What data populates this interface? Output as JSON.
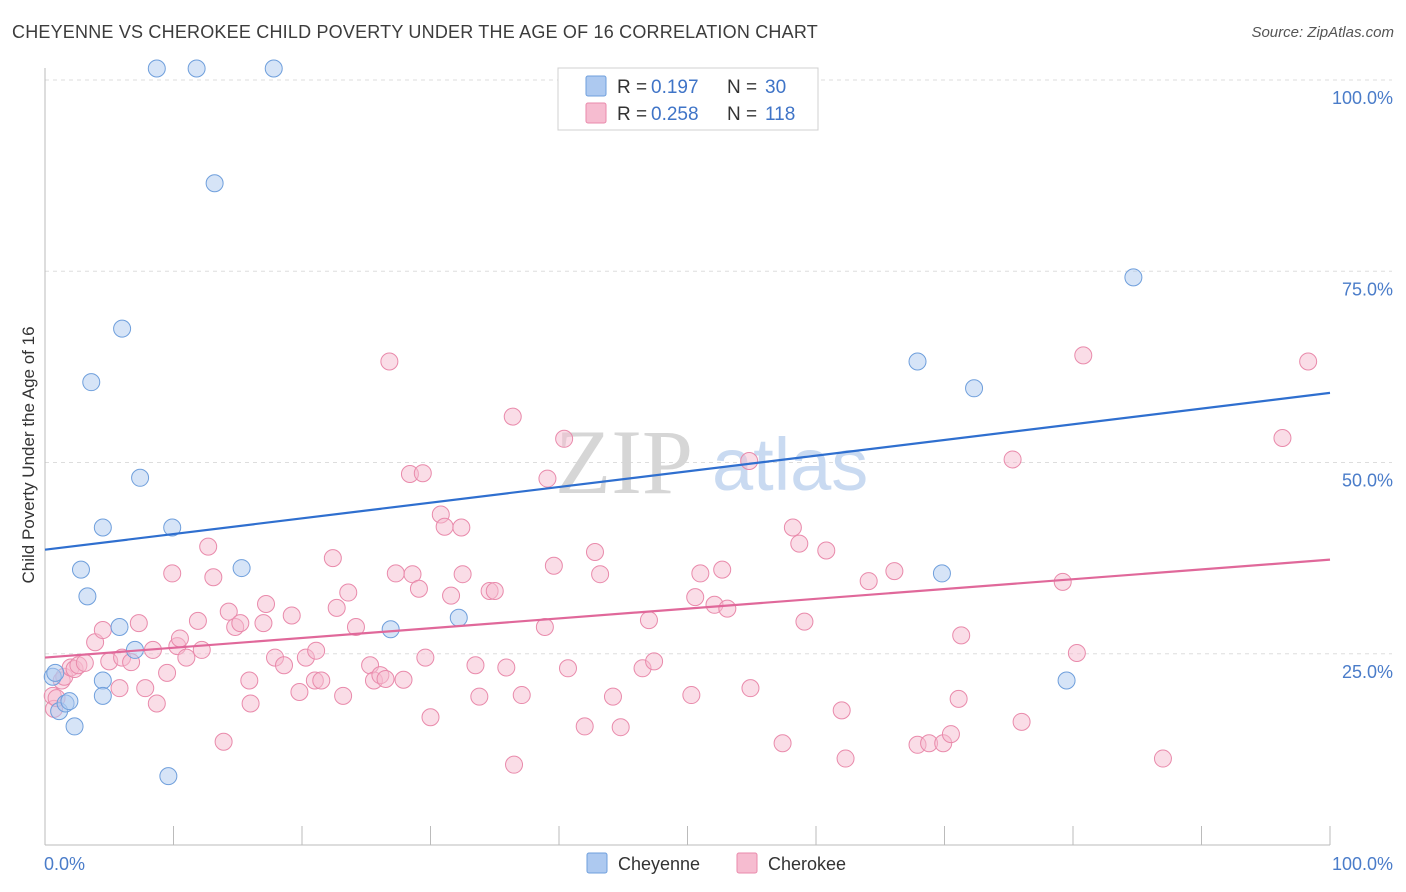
{
  "title": "CHEYENNE VS CHEROKEE CHILD POVERTY UNDER THE AGE OF 16 CORRELATION CHART",
  "source": "Source: ZipAtlas.com",
  "watermark": {
    "zip": "ZIP",
    "atlas": "atlas"
  },
  "legend": {
    "rows": [
      {
        "r_label": "R =",
        "r_value": "0.197",
        "n_label": "N =",
        "n_value": "30"
      },
      {
        "r_label": "R =",
        "r_value": "0.258",
        "n_label": "N =",
        "n_value": "118"
      }
    ]
  },
  "bottom_legend": {
    "cheyenne": "Cheyenne",
    "cherokee": "Cherokee"
  },
  "colors": {
    "cheyenne_fill": "#adc9f0",
    "cheyenne_stroke": "#6f9fdc",
    "cheyenne_line": "#2f6fcf",
    "cherokee_fill": "#f6bcd0",
    "cherokee_stroke": "#e98aab",
    "cherokee_line": "#e0689a",
    "tick_text": "#4a7cc9",
    "grid": "#dddddd"
  },
  "chart_data": {
    "type": "scatter",
    "title": "CHEYENNE VS CHEROKEE CHILD POVERTY UNDER THE AGE OF 16 CORRELATION CHART",
    "xlabel": "",
    "ylabel": "Child Poverty Under the Age of 16",
    "xlim": [
      0,
      100
    ],
    "ylim": [
      0,
      100
    ],
    "x_tick_labels": [
      "0.0%",
      "100.0%"
    ],
    "y_ticks": [
      25,
      50,
      75,
      100
    ],
    "y_tick_labels": [
      "25.0%",
      "50.0%",
      "75.0%",
      "100.0%"
    ],
    "grid": true,
    "legend_position": "top-center",
    "series": [
      {
        "name": "Cheyenne",
        "R": 0.197,
        "N": 30,
        "trend": [
          [
            0,
            38.6
          ],
          [
            100,
            59.1
          ]
        ],
        "points": [
          [
            0.6,
            22.0
          ],
          [
            0.8,
            22.5
          ],
          [
            1.1,
            17.5
          ],
          [
            1.6,
            18.5
          ],
          [
            1.9,
            18.8
          ],
          [
            2.3,
            15.5
          ],
          [
            2.8,
            36.0
          ],
          [
            3.3,
            32.5
          ],
          [
            3.6,
            60.5
          ],
          [
            4.5,
            21.5
          ],
          [
            4.5,
            19.5
          ],
          [
            4.5,
            41.5
          ],
          [
            5.8,
            28.5
          ],
          [
            6.0,
            67.5
          ],
          [
            7.0,
            25.5
          ],
          [
            7.4,
            48.0
          ],
          [
            8.7,
            101.5
          ],
          [
            9.6,
            9.0
          ],
          [
            9.9,
            41.5
          ],
          [
            11.8,
            101.5
          ],
          [
            13.2,
            86.5
          ],
          [
            15.3,
            36.2
          ],
          [
            17.8,
            101.5
          ],
          [
            26.9,
            28.2
          ],
          [
            32.2,
            29.7
          ],
          [
            67.9,
            63.2
          ],
          [
            69.8,
            35.5
          ],
          [
            72.3,
            59.7
          ],
          [
            79.5,
            21.5
          ],
          [
            84.7,
            74.2
          ]
        ]
      },
      {
        "name": "Cherokee",
        "R": 0.258,
        "N": 118,
        "trend": [
          [
            0,
            24.5
          ],
          [
            100,
            37.3
          ]
        ],
        "points": [
          [
            0.6,
            19.5
          ],
          [
            0.7,
            17.8
          ],
          [
            0.9,
            19.2
          ],
          [
            1.3,
            21.5
          ],
          [
            1.5,
            22.0
          ],
          [
            2.0,
            23.2
          ],
          [
            2.3,
            23.0
          ],
          [
            2.6,
            23.5
          ],
          [
            3.1,
            23.8
          ],
          [
            3.9,
            26.5
          ],
          [
            4.5,
            28.1
          ],
          [
            5.0,
            24.0
          ],
          [
            5.8,
            20.5
          ],
          [
            6.0,
            24.5
          ],
          [
            6.7,
            23.9
          ],
          [
            7.3,
            29.0
          ],
          [
            7.8,
            20.5
          ],
          [
            8.4,
            25.5
          ],
          [
            8.7,
            18.5
          ],
          [
            9.5,
            22.5
          ],
          [
            9.9,
            35.5
          ],
          [
            10.3,
            26.0
          ],
          [
            10.5,
            27.0
          ],
          [
            11.0,
            24.5
          ],
          [
            11.9,
            29.3
          ],
          [
            12.2,
            25.5
          ],
          [
            12.7,
            39.0
          ],
          [
            13.1,
            35.0
          ],
          [
            13.9,
            13.5
          ],
          [
            14.3,
            30.5
          ],
          [
            14.8,
            28.5
          ],
          [
            15.2,
            29.0
          ],
          [
            15.9,
            21.5
          ],
          [
            16.0,
            18.5
          ],
          [
            17.0,
            29.0
          ],
          [
            17.2,
            31.5
          ],
          [
            17.9,
            24.5
          ],
          [
            18.6,
            23.5
          ],
          [
            19.2,
            30.0
          ],
          [
            19.8,
            20.0
          ],
          [
            20.3,
            24.5
          ],
          [
            21.0,
            21.5
          ],
          [
            21.1,
            25.4
          ],
          [
            21.5,
            21.5
          ],
          [
            22.4,
            37.5
          ],
          [
            22.7,
            31.0
          ],
          [
            23.2,
            19.5
          ],
          [
            23.6,
            33.0
          ],
          [
            24.2,
            28.5
          ],
          [
            25.3,
            23.5
          ],
          [
            25.6,
            21.5
          ],
          [
            26.1,
            22.2
          ],
          [
            26.5,
            21.7
          ],
          [
            26.8,
            63.2
          ],
          [
            27.3,
            35.5
          ],
          [
            27.9,
            21.6
          ],
          [
            28.4,
            48.5
          ],
          [
            28.6,
            35.4
          ],
          [
            29.1,
            33.5
          ],
          [
            29.4,
            48.6
          ],
          [
            29.6,
            24.5
          ],
          [
            30.0,
            16.7
          ],
          [
            30.8,
            43.2
          ],
          [
            31.1,
            41.6
          ],
          [
            31.6,
            32.6
          ],
          [
            32.4,
            41.5
          ],
          [
            32.5,
            35.4
          ],
          [
            33.5,
            23.5
          ],
          [
            33.8,
            19.4
          ],
          [
            34.6,
            33.2
          ],
          [
            35.0,
            33.2
          ],
          [
            35.9,
            23.2
          ],
          [
            36.4,
            56.0
          ],
          [
            36.5,
            10.5
          ],
          [
            37.1,
            19.6
          ],
          [
            38.9,
            28.5
          ],
          [
            39.1,
            47.9
          ],
          [
            39.6,
            36.5
          ],
          [
            40.4,
            53.1
          ],
          [
            40.7,
            23.1
          ],
          [
            42.0,
            15.5
          ],
          [
            42.8,
            38.3
          ],
          [
            43.2,
            35.4
          ],
          [
            44.2,
            19.4
          ],
          [
            44.8,
            15.4
          ],
          [
            46.5,
            23.1
          ],
          [
            47.0,
            29.4
          ],
          [
            47.4,
            24.0
          ],
          [
            50.3,
            19.6
          ],
          [
            50.6,
            32.4
          ],
          [
            51.0,
            35.5
          ],
          [
            52.1,
            31.4
          ],
          [
            52.7,
            36.0
          ],
          [
            53.1,
            30.9
          ],
          [
            54.8,
            50.2
          ],
          [
            54.9,
            20.5
          ],
          [
            57.4,
            13.3
          ],
          [
            58.2,
            41.5
          ],
          [
            58.7,
            39.4
          ],
          [
            59.1,
            29.2
          ],
          [
            60.8,
            38.5
          ],
          [
            62.0,
            17.6
          ],
          [
            62.3,
            11.3
          ],
          [
            64.1,
            34.5
          ],
          [
            66.1,
            35.8
          ],
          [
            67.9,
            13.1
          ],
          [
            68.8,
            13.3
          ],
          [
            69.9,
            13.3
          ],
          [
            70.5,
            14.5
          ],
          [
            71.1,
            19.1
          ],
          [
            71.3,
            27.4
          ],
          [
            75.3,
            50.4
          ],
          [
            76.0,
            16.1
          ],
          [
            79.2,
            34.4
          ],
          [
            80.3,
            25.1
          ],
          [
            80.8,
            64.0
          ],
          [
            87.0,
            11.3
          ],
          [
            96.3,
            53.2
          ],
          [
            98.3,
            63.2
          ]
        ]
      }
    ]
  }
}
